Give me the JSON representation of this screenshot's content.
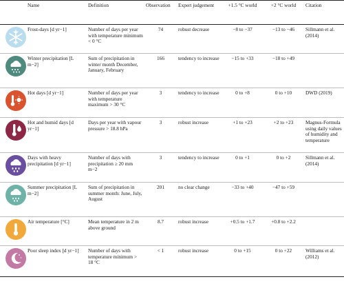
{
  "headers": {
    "name": "Name",
    "definition": "Definition",
    "observation": "Observation",
    "expert": "Expert judgement",
    "w15": "+1.5 °C world",
    "w2": "+2 °C world",
    "citation": "Citation"
  },
  "rows": [
    {
      "icon": "snowflake-icon",
      "icon_bg": "#b9dcef",
      "name": "Frost-days [d yr−1]",
      "definition": "Number of days per year with temperature minimum < 0 °C",
      "observation": "74",
      "expert": "robust decrease",
      "w15": "−8 to −37",
      "w2": "−13 to −46",
      "citation": "Sillmann et al. (2014)"
    },
    {
      "icon": "snow-cloud-icon",
      "icon_bg": "#4e8a7e",
      "name": "Winter precipitation [L m−2]",
      "definition": "Sum of precipitation in winter month December, January, February",
      "observation": "166",
      "expert": "tendency to increase",
      "w15": "−15 to +33",
      "w2": "−18 to +49",
      "citation": ""
    },
    {
      "icon": "sun-thermometer-icon",
      "icon_bg": "#d9532e",
      "name": "Hot days [d yr−1]",
      "definition": "Number of days per year with temperature maximum > 30 °C",
      "observation": "3",
      "expert": "tendency to increase",
      "w15": "0 to +8",
      "w2": "0 to +10",
      "citation": "DWD (2019)"
    },
    {
      "icon": "humid-thermometer-icon",
      "icon_bg": "#8e2746",
      "name": "Hot and humid days [d yr−1]",
      "definition": "Days per year with vapour pressure > 18.8 hPa",
      "observation": "3",
      "expert": "robust increase",
      "w15": "+1 to +23",
      "w2": "+2 to +23",
      "citation": "Magnus-Formula using daily values of humidity and temperature"
    },
    {
      "icon": "heavy-rain-icon",
      "icon_bg": "#6a4fa1",
      "name": "Days with heavy precipitation [d yr−1]",
      "definition": "Number of days with precipitation ≥ 20 mm m−2",
      "observation": "3",
      "expert": "tendency to increase",
      "w15": "0 to +1",
      "w2": "0 to +2",
      "citation": "Sillmann et al. (2014)"
    },
    {
      "icon": "rain-cloud-icon",
      "icon_bg": "#6fb3a8",
      "name": "Summer precipitation [L m−2]",
      "definition": "Sum of precipitation in summer month: June, July, August",
      "observation": "201",
      "expert": "no clear change",
      "w15": "−33 to +40",
      "w2": "−47 to +59",
      "citation": ""
    },
    {
      "icon": "thermometer-icon",
      "icon_bg": "#f2a93b",
      "name": "Air temperature [°C]",
      "definition": "Mean temperature in 2 m above ground",
      "observation": "8.7",
      "expert": "robust increase",
      "w15": "+0.5 to +1.7",
      "w2": "+0.8 to +2.2",
      "citation": ""
    },
    {
      "icon": "moon-stars-icon",
      "icon_bg": "#c27aa5",
      "name": "Poor sleep index [d yr−1]",
      "definition": "Number of days with temperature minimum > 18 °C",
      "observation": "< 1",
      "expert": "robust increase",
      "w15": "0 to +15",
      "w2": "0 to +22",
      "citation": "Williams et al. (2012)"
    }
  ]
}
